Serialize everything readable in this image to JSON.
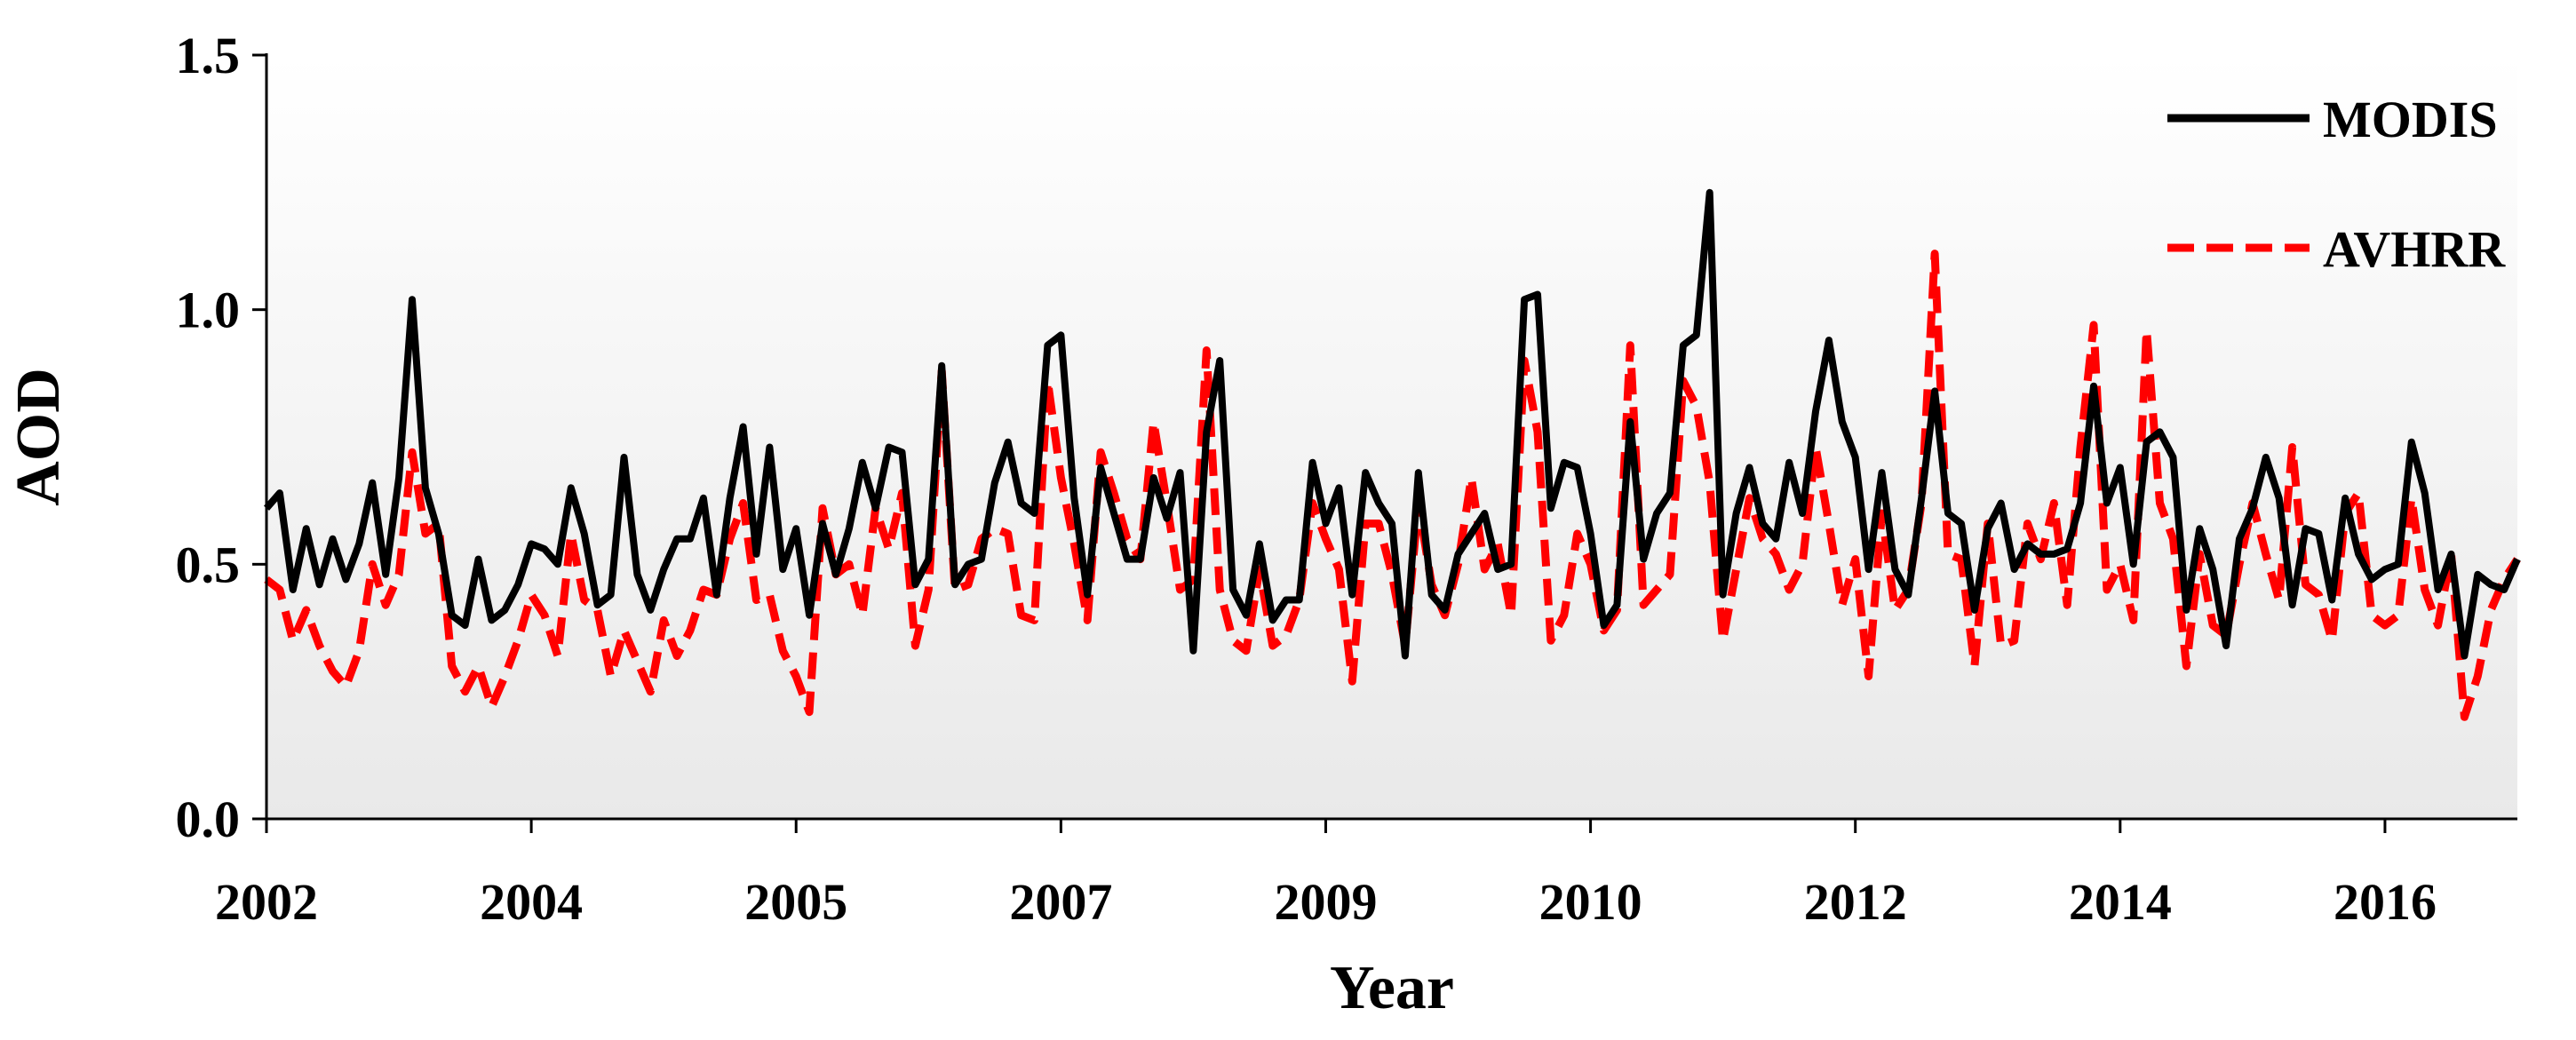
{
  "chart_data": {
    "type": "line",
    "title": "",
    "xlabel": "Year",
    "ylabel": "AOD",
    "ylim": [
      0,
      1.5
    ],
    "yticks": [
      "0.0",
      "0.5",
      "1.0",
      "1.5"
    ],
    "xticks": [
      "2002",
      "2004",
      "2005",
      "2007",
      "2009",
      "2010",
      "2012",
      "2014",
      "2016"
    ],
    "legend_position": "top-right",
    "background": "light gray vertical gradient in plot area",
    "series": [
      {
        "name": "MODIS",
        "color": "#000000",
        "style": "solid",
        "values": [
          0.61,
          0.64,
          0.45,
          0.57,
          0.46,
          0.55,
          0.47,
          0.54,
          0.66,
          0.48,
          0.67,
          1.02,
          0.65,
          0.56,
          0.4,
          0.38,
          0.51,
          0.39,
          0.41,
          0.46,
          0.54,
          0.53,
          0.5,
          0.65,
          0.56,
          0.42,
          0.44,
          0.71,
          0.48,
          0.41,
          0.49,
          0.55,
          0.55,
          0.63,
          0.44,
          0.63,
          0.77,
          0.52,
          0.73,
          0.49,
          0.57,
          0.4,
          0.58,
          0.48,
          0.57,
          0.7,
          0.61,
          0.73,
          0.72,
          0.46,
          0.51,
          0.89,
          0.46,
          0.5,
          0.51,
          0.66,
          0.74,
          0.62,
          0.6,
          0.93,
          0.95,
          0.63,
          0.44,
          0.69,
          0.6,
          0.51,
          0.51,
          0.67,
          0.59,
          0.68,
          0.33,
          0.76,
          0.9,
          0.45,
          0.4,
          0.54,
          0.39,
          0.43,
          0.43,
          0.7,
          0.58,
          0.65,
          0.44,
          0.68,
          0.62,
          0.58,
          0.32,
          0.68,
          0.44,
          0.41,
          0.52,
          0.56,
          0.6,
          0.49,
          0.5,
          1.02,
          1.03,
          0.61,
          0.7,
          0.69,
          0.56,
          0.38,
          0.42,
          0.78,
          0.51,
          0.6,
          0.64,
          0.93,
          0.95,
          1.23,
          0.44,
          0.6,
          0.69,
          0.58,
          0.55,
          0.7,
          0.6,
          0.8,
          0.94,
          0.78,
          0.71,
          0.49,
          0.68,
          0.49,
          0.44,
          0.63,
          0.84,
          0.6,
          0.58,
          0.41,
          0.57,
          0.62,
          0.49,
          0.54,
          0.52,
          0.52,
          0.53,
          0.62,
          0.85,
          0.62,
          0.69,
          0.5,
          0.74,
          0.76,
          0.71,
          0.41,
          0.57,
          0.49,
          0.34,
          0.55,
          0.61,
          0.71,
          0.63,
          0.42,
          0.57,
          0.56,
          0.43,
          0.63,
          0.52,
          0.47,
          0.49,
          0.5,
          0.74,
          0.64,
          0.45,
          0.52,
          0.32,
          0.48,
          0.46,
          0.45,
          0.51
        ]
      },
      {
        "name": "AVHRR",
        "color": "#ff0000",
        "style": "dashed",
        "values": [
          0.47,
          0.45,
          0.35,
          0.41,
          0.34,
          0.29,
          0.26,
          0.33,
          0.5,
          0.42,
          0.48,
          0.72,
          0.56,
          0.58,
          0.3,
          0.25,
          0.3,
          0.22,
          0.28,
          0.35,
          0.44,
          0.4,
          0.32,
          0.56,
          0.43,
          0.41,
          0.28,
          0.37,
          0.31,
          0.25,
          0.39,
          0.32,
          0.37,
          0.45,
          0.44,
          0.55,
          0.62,
          0.43,
          0.44,
          0.33,
          0.28,
          0.21,
          0.61,
          0.48,
          0.5,
          0.4,
          0.61,
          0.53,
          0.64,
          0.34,
          0.45,
          0.88,
          0.45,
          0.46,
          0.55,
          0.57,
          0.56,
          0.4,
          0.39,
          0.86,
          0.67,
          0.54,
          0.39,
          0.72,
          0.64,
          0.55,
          0.51,
          0.78,
          0.62,
          0.45,
          0.47,
          0.92,
          0.45,
          0.35,
          0.33,
          0.49,
          0.34,
          0.36,
          0.43,
          0.62,
          0.55,
          0.49,
          0.27,
          0.58,
          0.58,
          0.48,
          0.34,
          0.62,
          0.46,
          0.4,
          0.5,
          0.67,
          0.49,
          0.54,
          0.4,
          0.9,
          0.76,
          0.35,
          0.4,
          0.56,
          0.5,
          0.37,
          0.41,
          0.93,
          0.42,
          0.45,
          0.48,
          0.86,
          0.81,
          0.66,
          0.35,
          0.49,
          0.63,
          0.55,
          0.52,
          0.45,
          0.5,
          0.73,
          0.58,
          0.42,
          0.51,
          0.28,
          0.6,
          0.41,
          0.45,
          0.62,
          1.11,
          0.52,
          0.51,
          0.3,
          0.58,
          0.34,
          0.35,
          0.58,
          0.51,
          0.62,
          0.42,
          0.73,
          0.97,
          0.45,
          0.5,
          0.39,
          0.96,
          0.62,
          0.55,
          0.3,
          0.52,
          0.38,
          0.36,
          0.5,
          0.62,
          0.52,
          0.43,
          0.73,
          0.46,
          0.44,
          0.35,
          0.6,
          0.64,
          0.4,
          0.38,
          0.4,
          0.63,
          0.45,
          0.38,
          0.52,
          0.2,
          0.28,
          0.41,
          0.47,
          0.51
        ]
      }
    ]
  },
  "legend": [
    {
      "label": "MODIS",
      "color": "#000000",
      "style": "solid"
    },
    {
      "label": "AVHRR",
      "color": "#ff0000",
      "style": "dashed"
    }
  ]
}
